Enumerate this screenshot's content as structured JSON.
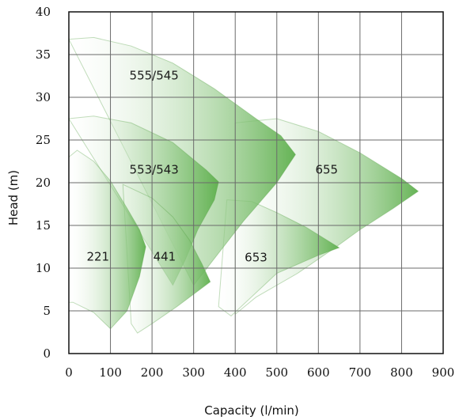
{
  "chart_data": {
    "type": "area",
    "title": "",
    "xlabel": "Capacity (l/min)",
    "ylabel": "Head (m)",
    "xlim": [
      0,
      900
    ],
    "ylim": [
      0,
      40
    ],
    "x_ticks": [
      "0",
      "100",
      "200",
      "300",
      "400",
      "500",
      "600",
      "700",
      "800",
      "900"
    ],
    "y_ticks": [
      "0",
      "5",
      "10",
      "15",
      "20",
      "25",
      "30",
      "35",
      "40"
    ],
    "grid": true,
    "legend": "none",
    "colors": {
      "fill_dark": "#5fb04e",
      "fill_light": "#ffffff",
      "edge": "#4f9f3f",
      "grid": "#6b6b6b"
    },
    "regions": [
      {
        "name": "655",
        "label_at": [
          620,
          21.5
        ],
        "outline": [
          [
            400,
            27
          ],
          [
            500,
            27.5
          ],
          [
            600,
            26
          ],
          [
            700,
            23.5
          ],
          [
            800,
            20.5
          ],
          [
            840,
            19
          ],
          [
            780,
            17
          ],
          [
            700,
            14.5
          ],
          [
            640,
            12.4
          ],
          [
            550,
            9.4
          ],
          [
            450,
            6.6
          ],
          [
            400,
            4.6
          ]
        ]
      },
      {
        "name": "653",
        "label_at": [
          450,
          11.2
        ],
        "outline": [
          [
            380,
            18
          ],
          [
            440,
            17.8
          ],
          [
            500,
            16.5
          ],
          [
            570,
            14.8
          ],
          [
            650,
            12.4
          ],
          [
            600,
            11.5
          ],
          [
            500,
            9.4
          ],
          [
            390,
            4.4
          ],
          [
            360,
            5.5
          ]
        ]
      },
      {
        "name": "555/545",
        "label_at": [
          205,
          32.5
        ],
        "outline": [
          [
            0,
            36.8
          ],
          [
            60,
            37
          ],
          [
            150,
            36
          ],
          [
            250,
            34
          ],
          [
            350,
            31
          ],
          [
            450,
            27.5
          ],
          [
            510,
            25.5
          ],
          [
            545,
            23.3
          ],
          [
            500,
            20
          ],
          [
            420,
            15.5
          ],
          [
            340,
            10.5
          ],
          [
            300,
            8
          ]
        ]
      },
      {
        "name": "553/543",
        "label_at": [
          205,
          21.5
        ],
        "outline": [
          [
            0,
            27.5
          ],
          [
            60,
            27.8
          ],
          [
            150,
            27
          ],
          [
            250,
            24.7
          ],
          [
            330,
            21.5
          ],
          [
            360,
            20.1
          ],
          [
            350,
            18
          ],
          [
            310,
            14.5
          ],
          [
            280,
            11
          ],
          [
            250,
            8
          ]
        ]
      },
      {
        "name": "441",
        "label_at": [
          230,
          11.3
        ],
        "outline": [
          [
            130,
            19.8
          ],
          [
            200,
            18.2
          ],
          [
            250,
            16
          ],
          [
            290,
            13.3
          ],
          [
            320,
            10.5
          ],
          [
            340,
            8.4
          ],
          [
            260,
            5.5
          ],
          [
            200,
            3.5
          ],
          [
            165,
            2.4
          ],
          [
            150,
            3.5
          ]
        ]
      },
      {
        "name": "221",
        "label_at": [
          70,
          11.3
        ],
        "outline": [
          [
            0,
            23
          ],
          [
            20,
            23.8
          ],
          [
            60,
            22.5
          ],
          [
            100,
            20.2
          ],
          [
            140,
            17
          ],
          [
            170,
            14.5
          ],
          [
            185,
            12.5
          ],
          [
            170,
            9
          ],
          [
            140,
            5
          ],
          [
            100,
            2.9
          ],
          [
            60,
            4.8
          ],
          [
            10,
            6
          ],
          [
            0,
            6
          ]
        ]
      }
    ]
  }
}
